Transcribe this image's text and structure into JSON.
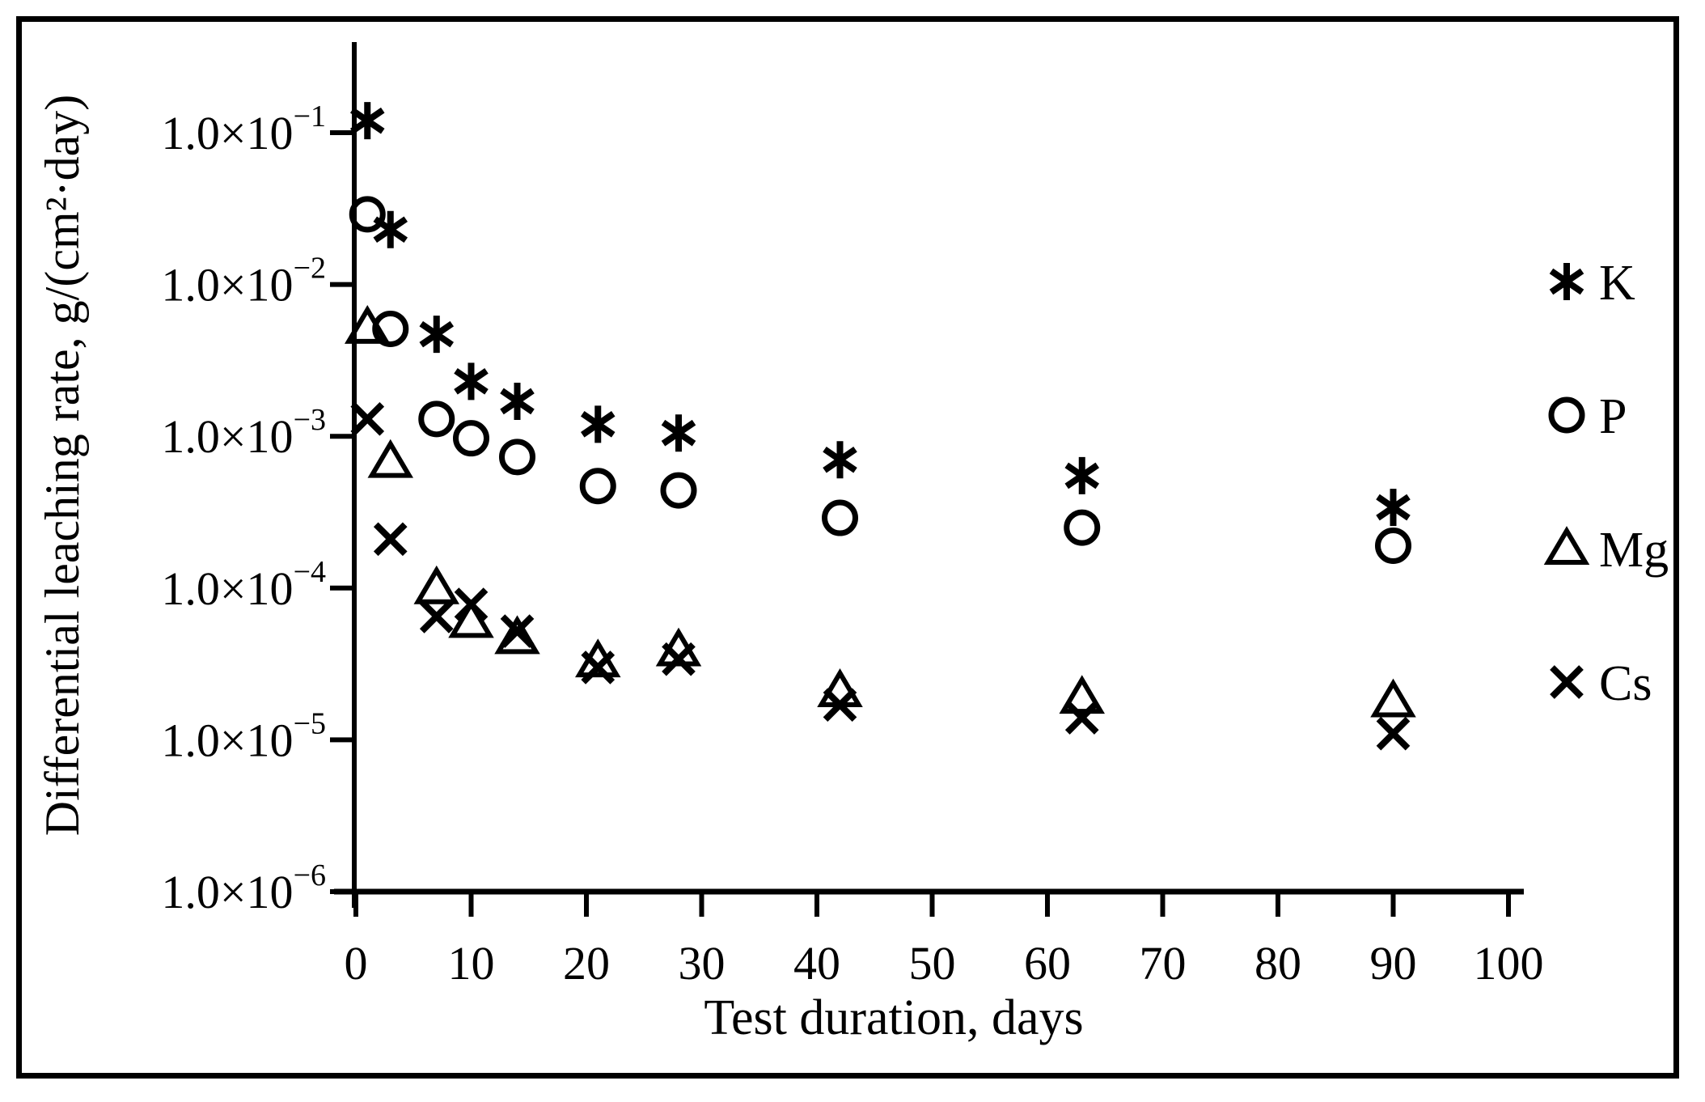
{
  "chart_data": {
    "type": "scatter",
    "title": "",
    "xlabel": "Test duration, days",
    "ylabel": "Differential leaching rate, g/(cm²·day)",
    "x_scale": "linear",
    "y_scale": "log",
    "xlim": [
      0,
      100
    ],
    "ylim": [
      1e-06,
      0.1
    ],
    "grid": false,
    "legend_position": "right",
    "x_ticks": [
      0,
      10,
      20,
      30,
      40,
      50,
      60,
      70,
      80,
      90,
      100
    ],
    "y_tick_base": "1.0×10",
    "y_tick_exponents": [
      -1,
      -2,
      -3,
      -4,
      -5,
      -6
    ],
    "x": [
      1,
      3,
      7,
      10,
      14,
      21,
      28,
      42,
      63,
      90
    ],
    "series": [
      {
        "name": "K",
        "marker": "asterisk",
        "values": [
          0.12,
          0.023,
          0.0047,
          0.0023,
          0.0017,
          0.0012,
          0.00105,
          0.0007,
          0.00055,
          0.00034
        ]
      },
      {
        "name": "P",
        "marker": "circle",
        "values": [
          0.029,
          0.0051,
          0.0013,
          0.00097,
          0.00073,
          0.00047,
          0.00044,
          0.00029,
          0.00025,
          0.00019
        ]
      },
      {
        "name": "Mg",
        "marker": "triangle",
        "values": [
          0.0052,
          0.00068,
          0.0001,
          6e-05,
          4.7e-05,
          3.3e-05,
          3.9e-05,
          2.1e-05,
          1.9e-05,
          1.8e-05
        ]
      },
      {
        "name": "Cs",
        "marker": "x",
        "values": [
          0.0013,
          0.00021,
          6.5e-05,
          7.8e-05,
          5.2e-05,
          3e-05,
          3.4e-05,
          1.7e-05,
          1.4e-05,
          1.1e-05
        ]
      }
    ]
  },
  "colors": {
    "foreground": "#000000",
    "background": "#ffffff"
  }
}
